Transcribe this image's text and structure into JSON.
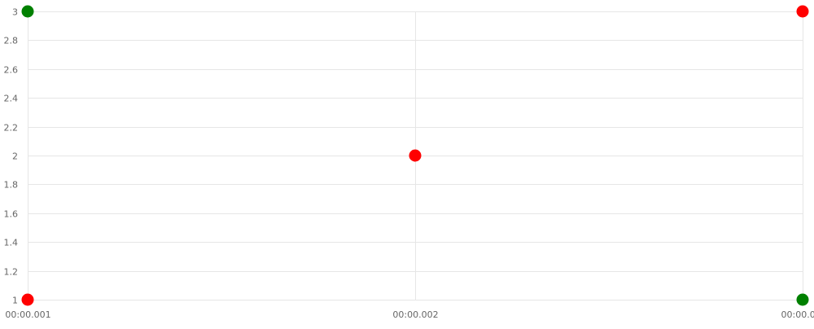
{
  "chart_data": {
    "type": "scatter",
    "title": "",
    "xlabel": "",
    "ylabel": "",
    "x_ticks": [
      "00:00.001",
      "00:00.002",
      "00:00.0"
    ],
    "y_ticks": [
      1,
      1.2,
      1.4,
      1.6,
      1.8,
      2,
      2.2,
      2.4,
      2.6,
      2.8,
      3
    ],
    "ylim": [
      1,
      3
    ],
    "grid": true,
    "legend": "none",
    "series": [
      {
        "color": "#ff0000",
        "points": [
          {
            "x": "00:00.001",
            "y": 1
          },
          {
            "x": "00:00.002",
            "y": 2
          },
          {
            "x": "00:00.003",
            "y": 3
          }
        ]
      },
      {
        "color": "#008000",
        "points": [
          {
            "x": "00:00.001",
            "y": 3
          },
          {
            "x": "00:00.003",
            "y": 1
          }
        ]
      }
    ]
  }
}
